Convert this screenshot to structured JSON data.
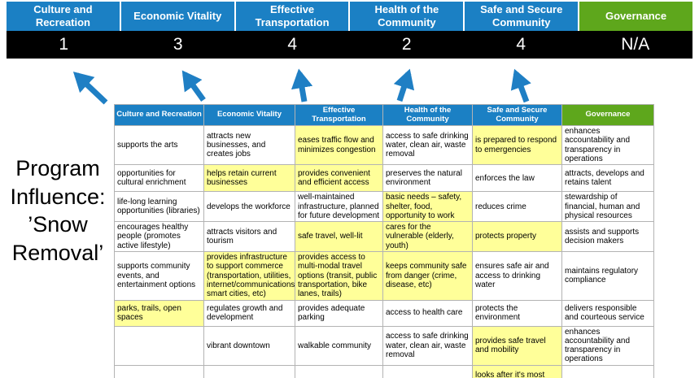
{
  "title": {
    "text": "Program\nInfluence:\n’Snow\nRemoval’"
  },
  "colors": {
    "pillar_blue": "#1b80c4",
    "governance_green": "#5ea71c",
    "score_bar_black": "#000000",
    "highlight_yellow": "#ffff99",
    "arrow_blue": "#1f7fc4"
  },
  "scoreboard": {
    "columns": [
      {
        "label": "Culture and Recreation",
        "score": "1",
        "color": "#1b80c4"
      },
      {
        "label": "Economic Vitality",
        "score": "3",
        "color": "#1b80c4"
      },
      {
        "label": "Effective Transportation",
        "score": "4",
        "color": "#1b80c4"
      },
      {
        "label": "Health of the Community",
        "score": "2",
        "color": "#1b80c4"
      },
      {
        "label": "Safe and Secure Community",
        "score": "4",
        "color": "#1b80c4"
      },
      {
        "label": "Governance",
        "score": "N/A",
        "color": "#5ea71c"
      }
    ]
  },
  "matrix": {
    "headers": [
      {
        "label": "Culture and Recreation",
        "color": "#1b80c4"
      },
      {
        "label": "Economic Vitality",
        "color": "#1b80c4"
      },
      {
        "label": "Effective Transportation",
        "color": "#1b80c4"
      },
      {
        "label": "Health of the Community",
        "color": "#1b80c4"
      },
      {
        "label": "Safe and Secure Community",
        "color": "#1b80c4"
      },
      {
        "label": "Governance",
        "color": "#5ea71c"
      }
    ],
    "rows": [
      [
        {
          "text": "supports the arts",
          "highlight": false
        },
        {
          "text": "attracts new businesses, and creates jobs",
          "highlight": false
        },
        {
          "text": "eases traffic flow and minimizes congestion",
          "highlight": true
        },
        {
          "text": "access to safe drinking water, clean air, waste removal",
          "highlight": false
        },
        {
          "text": "is prepared to respond to emergencies",
          "highlight": true
        },
        {
          "text": "enhances accountability and transparency in operations",
          "highlight": false
        }
      ],
      [
        {
          "text": "opportunities for cultural enrichment",
          "highlight": false
        },
        {
          "text": "helps retain current businesses",
          "highlight": true
        },
        {
          "text": "provides convenient and efficient access",
          "highlight": true
        },
        {
          "text": "preserves the natural environment",
          "highlight": false
        },
        {
          "text": "enforces the law",
          "highlight": false
        },
        {
          "text": "attracts, develops and retains talent",
          "highlight": false
        }
      ],
      [
        {
          "text": "life-long learning opportunities (libraries)",
          "highlight": false
        },
        {
          "text": "develops the workforce",
          "highlight": false
        },
        {
          "text": "well-maintained infrastructure, planned for future development",
          "highlight": false
        },
        {
          "text": "basic needs – safety, shelter, food, opportunity to work",
          "highlight": true
        },
        {
          "text": "reduces crime",
          "highlight": false
        },
        {
          "text": "stewardship of financial, human and physical resources",
          "highlight": false
        }
      ],
      [
        {
          "text": "encourages healthy people (promotes active lifestyle)",
          "highlight": false
        },
        {
          "text": "attracts visitors and tourism",
          "highlight": false
        },
        {
          "text": "safe travel, well-lit",
          "highlight": true
        },
        {
          "text": "cares for the vulnerable (elderly, youth)",
          "highlight": true
        },
        {
          "text": "protects property",
          "highlight": true
        },
        {
          "text": "assists and supports decision makers",
          "highlight": false
        }
      ],
      [
        {
          "text": "supports community events, and entertainment options",
          "highlight": false
        },
        {
          "text": "provides infrastructure to support commerce (transportation, utilities, internet/communications, smart cities, etc)",
          "highlight": true
        },
        {
          "text": "provides access to multi-modal travel options (transit, public transportation, bike lanes, trails)",
          "highlight": true
        },
        {
          "text": "keeps community safe from danger (crime, disease, etc)",
          "highlight": true
        },
        {
          "text": "ensures safe air and access to drinking water",
          "highlight": false
        },
        {
          "text": "maintains regulatory compliance",
          "highlight": false
        }
      ],
      [
        {
          "text": "parks, trails, open spaces",
          "highlight": true
        },
        {
          "text": "regulates growth and development",
          "highlight": false
        },
        {
          "text": "provides adequate parking",
          "highlight": false
        },
        {
          "text": "access to health care",
          "highlight": false
        },
        {
          "text": "protects the environment",
          "highlight": false
        },
        {
          "text": "delivers responsible and courteous service",
          "highlight": false
        }
      ],
      [
        {
          "text": "",
          "highlight": false
        },
        {
          "text": "vibrant downtown",
          "highlight": false
        },
        {
          "text": "walkable community",
          "highlight": false
        },
        {
          "text": "access to safe drinking water, clean air, waste removal",
          "highlight": false
        },
        {
          "text": "provides safe travel and mobility",
          "highlight": true
        },
        {
          "text": "enhances accountability and transparency in operations",
          "highlight": false
        }
      ],
      [
        {
          "text": "",
          "highlight": false
        },
        {
          "text": "",
          "highlight": false
        },
        {
          "text": "",
          "highlight": false
        },
        {
          "text": "",
          "highlight": false
        },
        {
          "text": "looks after it's most vulnerable",
          "highlight": true
        },
        {
          "text": "",
          "highlight": false
        }
      ]
    ]
  }
}
